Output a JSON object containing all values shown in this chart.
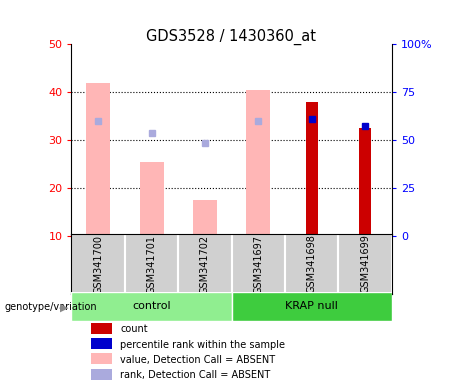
{
  "title": "GDS3528 / 1430360_at",
  "samples": [
    "GSM341700",
    "GSM341701",
    "GSM341702",
    "GSM341697",
    "GSM341698",
    "GSM341699"
  ],
  "ylim_left": [
    10,
    50
  ],
  "ylim_right": [
    0,
    100
  ],
  "yticks_left": [
    10,
    20,
    30,
    40,
    50
  ],
  "ytick_labels_right": [
    "0",
    "25",
    "50",
    "75",
    "100%"
  ],
  "yticks_right": [
    0,
    25,
    50,
    75,
    100
  ],
  "absent_value_bars": [
    42.0,
    25.5,
    17.5,
    40.5,
    null,
    null
  ],
  "absent_rank_markers": [
    34.0,
    31.5,
    29.5,
    34.0,
    null,
    null
  ],
  "count_bars": [
    null,
    null,
    null,
    null,
    38.0,
    32.5
  ],
  "percentile_rank_markers": [
    null,
    null,
    null,
    null,
    34.5,
    33.0
  ],
  "absent_value_color": "#FFB6B6",
  "absent_rank_color": "#AAAADD",
  "count_color": "#CC0000",
  "percentile_rank_color": "#0000CC",
  "grid_lines": [
    20,
    30,
    40
  ],
  "control_group_color": "#90EE90",
  "krap_group_color": "#3ECC3E",
  "sample_box_color": "#D0D0D0",
  "legend_items": [
    {
      "label": "count",
      "color": "#CC0000"
    },
    {
      "label": "percentile rank within the sample",
      "color": "#0000CC"
    },
    {
      "label": "value, Detection Call = ABSENT",
      "color": "#FFB6B6"
    },
    {
      "label": "rank, Detection Call = ABSENT",
      "color": "#AAAADD"
    }
  ]
}
